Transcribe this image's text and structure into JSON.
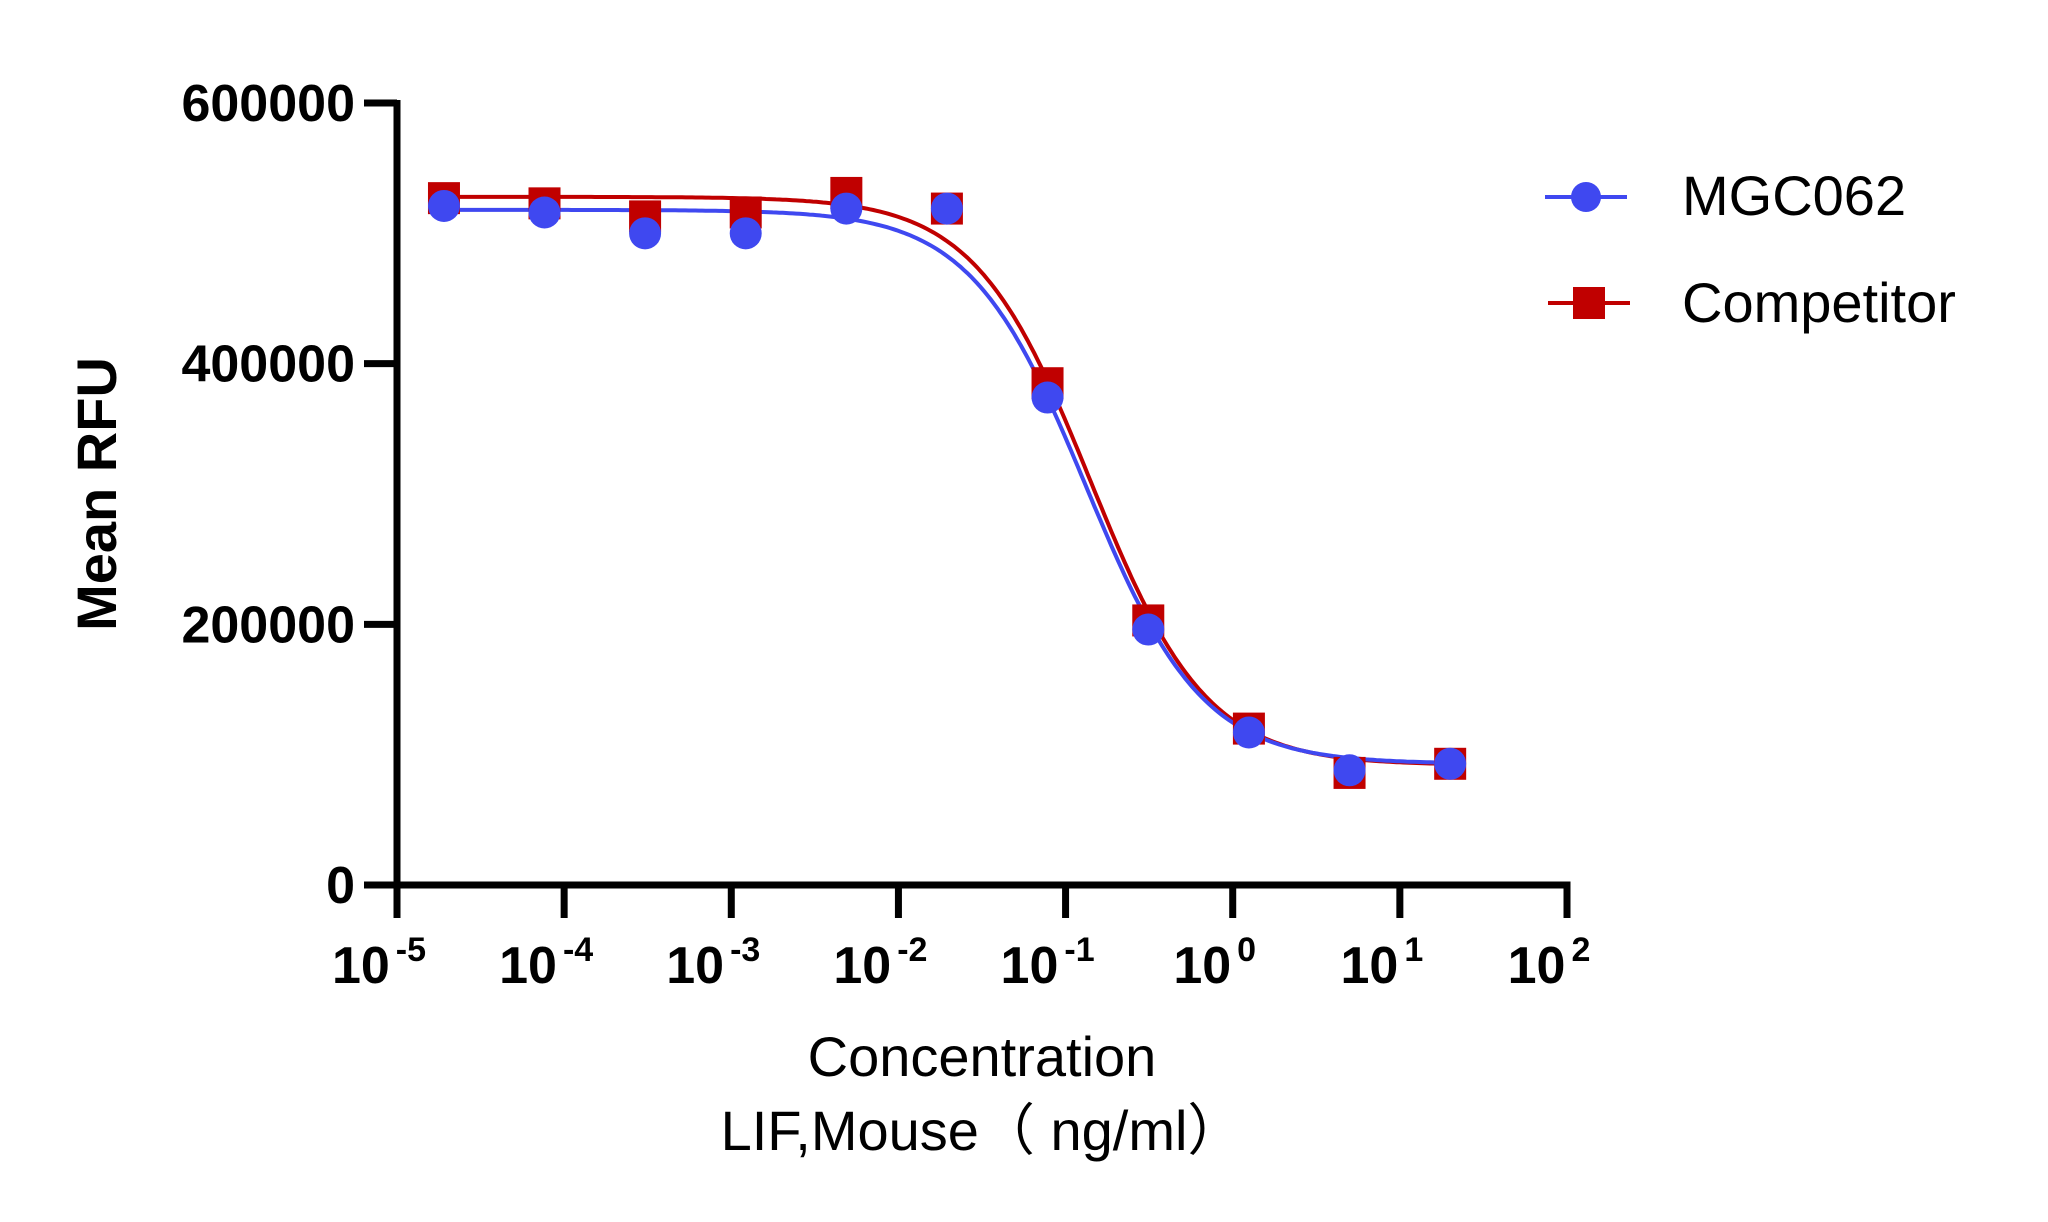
{
  "chart_data": {
    "type": "scatter",
    "title": "",
    "xlabel": "Concentration",
    "xlabel_line2": "LIF,Mouse（ ng/ml）",
    "ylabel": "Mean RFU",
    "xscale": "log",
    "xlim": [
      1e-05,
      100
    ],
    "ylim": [
      0,
      600000
    ],
    "grid": false,
    "legend_position": "top-right",
    "x_ticks": [
      {
        "value": 1e-05,
        "base": "10",
        "exp": "-5"
      },
      {
        "value": 0.0001,
        "base": "10",
        "exp": "-4"
      },
      {
        "value": 0.001,
        "base": "10",
        "exp": "-3"
      },
      {
        "value": 0.01,
        "base": "10",
        "exp": "-2"
      },
      {
        "value": 0.1,
        "base": "10",
        "exp": "-1"
      },
      {
        "value": 1,
        "base": "10",
        "exp": "0"
      },
      {
        "value": 10,
        "base": "10",
        "exp": "1"
      },
      {
        "value": 100,
        "base": "10",
        "exp": "2"
      }
    ],
    "y_ticks": [
      {
        "value": 0,
        "label": "0"
      },
      {
        "value": 200000,
        "label": "200000"
      },
      {
        "value": 400000,
        "label": "400000"
      },
      {
        "value": 600000,
        "label": "600000"
      }
    ],
    "x": [
      1.91e-05,
      7.63e-05,
      0.000305,
      0.00122,
      0.00488,
      0.0195,
      0.078,
      0.3125,
      1.25,
      5,
      20
    ],
    "series": [
      {
        "name": "MGC062",
        "color": "#3f48f0",
        "marker": "circle",
        "values": [
          521000,
          516000,
          500000,
          500000,
          519000,
          519000,
          374000,
          196000,
          117000,
          88000,
          93000
        ],
        "fit": {
          "model": "4PL",
          "top": 518000,
          "bottom": 93000,
          "ec50": 0.133,
          "hill": 1.25
        }
      },
      {
        "name": "Competitor",
        "color": "#c00000",
        "marker": "square",
        "values": [
          527000,
          523000,
          513000,
          516000,
          531000,
          519000,
          385000,
          203000,
          120000,
          86000,
          93000
        ],
        "fit": {
          "model": "4PL",
          "top": 528000,
          "bottom": 92000,
          "ec50": 0.141,
          "hill": 1.25
        }
      }
    ]
  }
}
